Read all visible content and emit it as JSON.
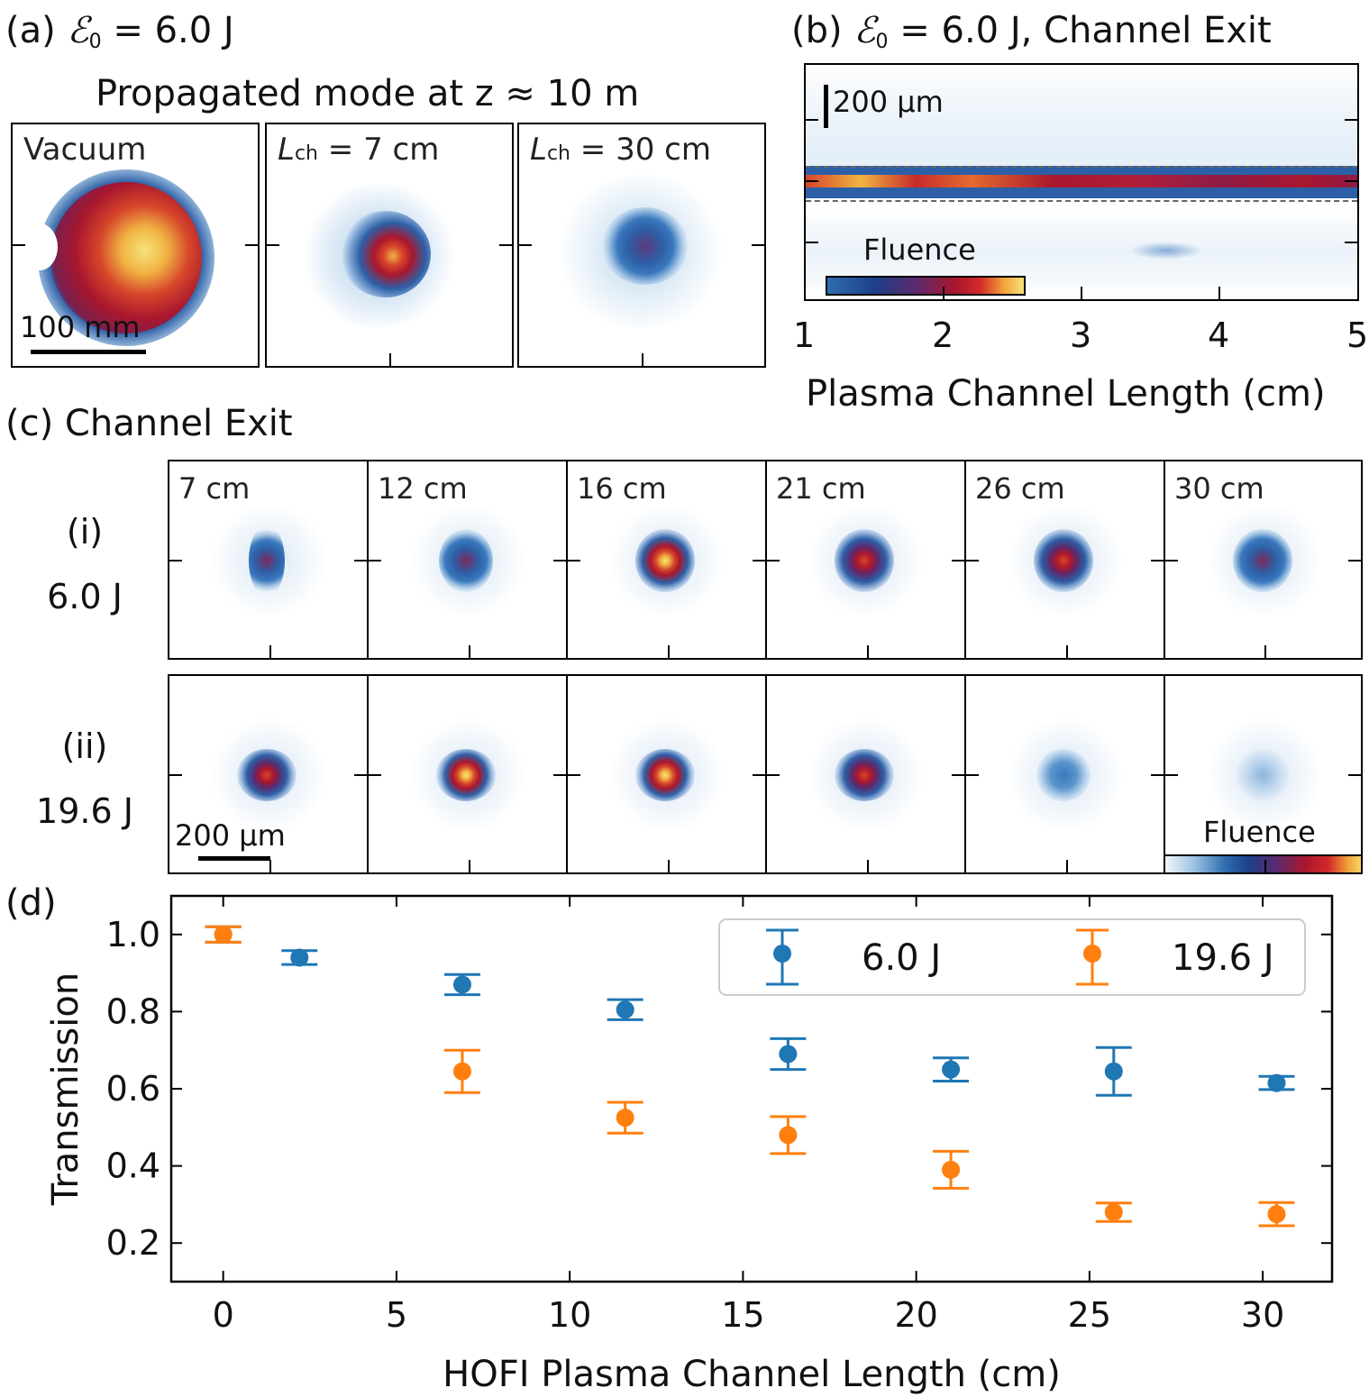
{
  "panel_a": {
    "title": "(a) ",
    "energy_symbol": "ℰ",
    "energy_sub": "0",
    "energy_value": " = 6.0 J",
    "subtitle": "Propagated mode at z ≈ 10 m",
    "frames": [
      {
        "label": "Vacuum"
      },
      {
        "label_main": "L",
        "label_sub": "ch",
        "label_rest": " = 7 cm"
      },
      {
        "label_main": "L",
        "label_sub": "ch",
        "label_rest": " = 30 cm"
      }
    ],
    "scalebar_label": "100 mm"
  },
  "panel_b": {
    "title": "(b) ",
    "energy_symbol": "ℰ",
    "energy_sub": "0",
    "energy_value": " = 6.0 J, Channel Exit",
    "scalebar_label": "200 µm",
    "colorbar_label": "Fluence",
    "xlabel": "Plasma Channel Length (cm)",
    "xticks": [
      "1",
      "2",
      "3",
      "4",
      "5"
    ]
  },
  "panel_c": {
    "title": "(c) Channel Exit",
    "row_i_label": "(i)",
    "row_i_energy": "6.0 J",
    "row_ii_label": "(ii)",
    "row_ii_energy": "19.6 J",
    "columns": [
      "7 cm",
      "12 cm",
      "16 cm",
      "21 cm",
      "26 cm",
      "30 cm"
    ],
    "row_i_peak": [
      0.45,
      0.6,
      0.95,
      0.85,
      0.7,
      0.65
    ],
    "row_ii_peak": [
      0.75,
      0.95,
      0.95,
      0.7,
      0.3,
      0.15
    ],
    "scalebar_label": "200 µm",
    "colorbar_label": "Fluence"
  },
  "panel_d": {
    "title": "(d)"
  },
  "chart_data": {
    "type": "scatter",
    "title": "",
    "xlabel": "HOFI Plasma Channel Length (cm)",
    "ylabel": "Transmission",
    "xlim": [
      -1.5,
      32
    ],
    "ylim": [
      0.1,
      1.1
    ],
    "xticks": [
      0,
      5,
      10,
      15,
      20,
      25,
      30
    ],
    "yticks": [
      "0.2",
      "0.4",
      "0.6",
      "0.8",
      "1.0"
    ],
    "legend_position": "top-right",
    "series": [
      {
        "name": "6.0 J",
        "color": "#1f77b4",
        "x": [
          0,
          2.2,
          6.9,
          11.6,
          16.3,
          21.0,
          25.7,
          30.4
        ],
        "y": [
          1.0,
          0.94,
          0.87,
          0.805,
          0.69,
          0.65,
          0.645,
          0.615
        ],
        "err": [
          0.02,
          0.018,
          0.026,
          0.026,
          0.04,
          0.03,
          0.062,
          0.017
        ]
      },
      {
        "name": "19.6 J",
        "color": "#ff7f0e",
        "x": [
          0,
          6.9,
          11.6,
          16.3,
          21.0,
          25.7,
          30.4
        ],
        "y": [
          1.0,
          0.645,
          0.525,
          0.48,
          0.39,
          0.28,
          0.275
        ],
        "err": [
          0.02,
          0.055,
          0.04,
          0.048,
          0.048,
          0.024,
          0.03
        ]
      }
    ]
  }
}
